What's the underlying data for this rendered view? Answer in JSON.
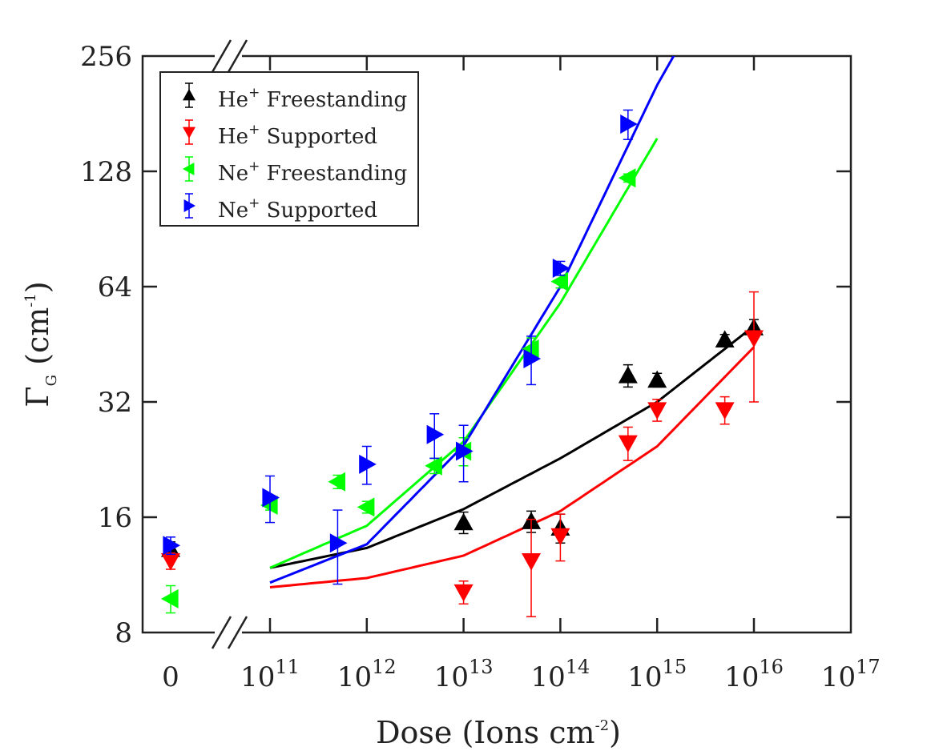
{
  "chart_data": {
    "type": "scatter",
    "xlabel": {
      "main": "Dose (Ions cm",
      "sup": "-2",
      "close": ")"
    },
    "ylabel": {
      "main": "Γ",
      "sub": "G",
      "unit": " (cm",
      "sup": "-1",
      "close": ")"
    },
    "y_scale": "log2",
    "ylim": [
      8,
      256
    ],
    "yticks": [
      "8",
      "16",
      "32",
      "64",
      "128",
      "256"
    ],
    "x_scale": "log10 with axis break",
    "xlim_log10_dose": [
      10,
      17
    ],
    "xticks": [
      {
        "base": "0",
        "exp": ""
      },
      {
        "base": "10",
        "exp": "11"
      },
      {
        "base": "10",
        "exp": "12"
      },
      {
        "base": "10",
        "exp": "13"
      },
      {
        "base": "10",
        "exp": "14"
      },
      {
        "base": "10",
        "exp": "15"
      },
      {
        "base": "10",
        "exp": "16"
      },
      {
        "base": "10",
        "exp": "17"
      }
    ],
    "zero_dose_label": "0",
    "legend_position": "top-left",
    "series": [
      {
        "name": {
          "ion": "He",
          "charge": "+",
          "text": " Freestanding"
        },
        "marker": "triangle-up",
        "color": "#000000",
        "points": [
          {
            "x": 0,
            "y": 13.2,
            "err": 0.6
          },
          {
            "x": 10000000000000.0,
            "y": 15.5,
            "err": 1.0
          },
          {
            "x": 50000000000000.0,
            "y": 15.6,
            "err": 1.0
          },
          {
            "x": 100000000000000.0,
            "y": 15.0,
            "err": 1.3
          },
          {
            "x": 500000000000000.0,
            "y": 37.5,
            "err": 2.5
          },
          {
            "x": 1000000000000000.0,
            "y": 36.5,
            "err": 1.5
          },
          {
            "x": 5000000000000000.0,
            "y": 46.5,
            "err": 1.5
          },
          {
            "x": 1e+16,
            "y": 50.0,
            "err": 2.5
          }
        ],
        "fit": [
          [
            100000000000.0,
            11.8
          ],
          [
            1000000000000.0,
            13.3
          ],
          [
            10000000000000.0,
            16.8
          ],
          [
            100000000000000.0,
            22.8
          ],
          [
            1000000000000000.0,
            32.0
          ],
          [
            1e+16,
            50.5
          ]
        ]
      },
      {
        "name": {
          "ion": "He",
          "charge": "+",
          "text": " Supported"
        },
        "marker": "triangle-down",
        "color": "#ff0000",
        "points": [
          {
            "x": 0,
            "y": 12.3,
            "err": 0.6
          },
          {
            "x": 10000000000000.0,
            "y": 10.2,
            "err": 0.7
          },
          {
            "x": 50000000000000.0,
            "y": 12.3,
            "err": 3.5
          },
          {
            "x": 100000000000000.0,
            "y": 14.3,
            "err": 2.0
          },
          {
            "x": 500000000000000.0,
            "y": 25.0,
            "err": 2.5
          },
          {
            "x": 1000000000000000.0,
            "y": 30.5,
            "err": 2.0
          },
          {
            "x": 5000000000000000.0,
            "y": 30.5,
            "err": 2.5
          },
          {
            "x": 1e+16,
            "y": 47.0,
            "err": 15.0
          }
        ],
        "fit": [
          [
            100000000000.0,
            10.5
          ],
          [
            1000000000000.0,
            11.1
          ],
          [
            10000000000000.0,
            12.7
          ],
          [
            100000000000000.0,
            16.6
          ],
          [
            1000000000000000.0,
            24.5
          ],
          [
            1e+16,
            44.5
          ]
        ]
      },
      {
        "name": {
          "ion": "Ne",
          "charge": "+",
          "text": " Freestanding"
        },
        "marker": "triangle-left",
        "color": "#00ff00",
        "points": [
          {
            "x": 0,
            "y": 9.8,
            "err": 0.8
          },
          {
            "x": 100000000000.0,
            "y": 17.2,
            "err": 0.5
          },
          {
            "x": 500000000000.0,
            "y": 19.8,
            "err": 0.8
          },
          {
            "x": 1000000000000.0,
            "y": 17.0,
            "err": 0.6
          },
          {
            "x": 5000000000000.0,
            "y": 21.8,
            "err": 1.0
          },
          {
            "x": 10000000000000.0,
            "y": 23.8,
            "err": 2.0
          },
          {
            "x": 50000000000000.0,
            "y": 44.0,
            "err": 3.0
          },
          {
            "x": 100000000000000.0,
            "y": 66.0,
            "err": 2.5
          },
          {
            "x": 500000000000000.0,
            "y": 123.0,
            "err": 3.0
          }
        ],
        "fit": [
          [
            100000000000.0,
            11.8
          ],
          [
            1000000000000.0,
            15.2
          ],
          [
            10000000000000.0,
            25.2
          ],
          [
            100000000000000.0,
            58.0
          ],
          [
            1000000000000000.0,
            156.0
          ]
        ]
      },
      {
        "name": {
          "ion": "Ne",
          "charge": "+",
          "text": " Supported"
        },
        "marker": "triangle-right",
        "color": "#0000ff",
        "points": [
          {
            "x": 0,
            "y": 13.5,
            "err": 0.7
          },
          {
            "x": 100000000000.0,
            "y": 18.0,
            "err": 2.5
          },
          {
            "x": 500000000000.0,
            "y": 13.7,
            "err": 3.0
          },
          {
            "x": 1000000000000.0,
            "y": 22.0,
            "err": 2.5
          },
          {
            "x": 5000000000000.0,
            "y": 26.3,
            "err": 3.5
          },
          {
            "x": 10000000000000.0,
            "y": 23.8,
            "err": 4.0
          },
          {
            "x": 50000000000000.0,
            "y": 41.5,
            "err": 6.0
          },
          {
            "x": 100000000000000.0,
            "y": 71.5,
            "err": 3.0
          },
          {
            "x": 500000000000000.0,
            "y": 170.0,
            "err": 15.0
          }
        ],
        "fit": [
          [
            100000000000.0,
            10.8
          ],
          [
            1000000000000.0,
            13.6
          ],
          [
            10000000000000.0,
            24.6
          ],
          [
            100000000000000.0,
            64.0
          ],
          [
            1000000000000000.0,
            215.0
          ],
          [
            1600000000000000.0,
            265.0
          ]
        ]
      }
    ]
  }
}
